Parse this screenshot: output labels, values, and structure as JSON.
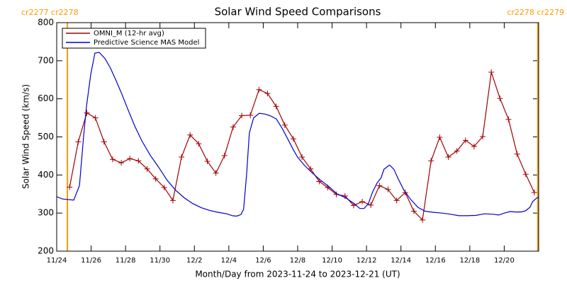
{
  "chart_data": {
    "type": "line",
    "title": "Solar Wind Speed Comparisons",
    "xlabel": "Month/Day from 2023-11-24 to 2023-12-21 (UT)",
    "ylabel": "Solar Wind Speed (km/s)",
    "xlim": [
      0,
      28
    ],
    "ylim": [
      200,
      800
    ],
    "xticks": [
      {
        "value": 0,
        "label": "11/24"
      },
      {
        "value": 2,
        "label": "11/26"
      },
      {
        "value": 4,
        "label": "11/28"
      },
      {
        "value": 6,
        "label": "11/30"
      },
      {
        "value": 8,
        "label": "12/2"
      },
      {
        "value": 10,
        "label": "12/4"
      },
      {
        "value": 12,
        "label": "12/6"
      },
      {
        "value": 14,
        "label": "12/8"
      },
      {
        "value": 16,
        "label": "12/10"
      },
      {
        "value": 18,
        "label": "12/12"
      },
      {
        "value": 20,
        "label": "12/14"
      },
      {
        "value": 22,
        "label": "12/16"
      },
      {
        "value": 24,
        "label": "12/18"
      },
      {
        "value": 26,
        "label": "12/20"
      }
    ],
    "yticks": [
      200,
      300,
      400,
      500,
      600,
      700,
      800
    ],
    "legend": "upper left",
    "vlines": {
      "color": "#ff9900",
      "x": [
        0.62,
        27.95
      ]
    },
    "annotations": [
      "cr2277 cr2278",
      "cr2278 cr2279"
    ],
    "series": [
      {
        "name": "OMNI_M (12-hr avg)",
        "color": "#a00000",
        "marker": "+",
        "x": [
          0.75,
          1.25,
          1.75,
          2.25,
          2.75,
          3.25,
          3.75,
          4.25,
          4.75,
          5.25,
          5.75,
          6.25,
          6.75,
          7.25,
          7.75,
          8.25,
          8.75,
          9.25,
          9.75,
          10.25,
          10.75,
          11.25,
          11.75,
          12.25,
          12.75,
          13.25,
          13.75,
          14.25,
          14.75,
          15.25,
          15.75,
          16.25,
          16.75,
          17.25,
          17.75,
          18.25,
          18.75,
          19.25,
          19.75,
          20.25,
          20.75,
          21.25,
          21.75,
          22.25,
          22.75,
          23.25,
          23.75,
          24.25,
          24.75,
          25.25,
          25.75,
          26.25,
          26.75,
          27.25,
          27.75
        ],
        "values": [
          368,
          487,
          563,
          550,
          487,
          441,
          432,
          443,
          437,
          416,
          390,
          367,
          333,
          447,
          505,
          482,
          436,
          405,
          451,
          526,
          556,
          557,
          624,
          614,
          580,
          531,
          495,
          447,
          416,
          383,
          367,
          349,
          345,
          320,
          330,
          321,
          372,
          362,
          333,
          354,
          305,
          282,
          437,
          499,
          447,
          463,
          491,
          475,
          501,
          670,
          601,
          546,
          455,
          402,
          354
        ]
      },
      {
        "name": "Predictive Science MAS Model",
        "color": "#0000cc",
        "x": [
          0,
          0.33,
          0.99,
          1.32,
          1.56,
          1.73,
          1.98,
          2.22,
          2.47,
          2.8,
          3.13,
          3.46,
          3.79,
          4.12,
          4.53,
          4.94,
          5.43,
          5.93,
          6.42,
          6.91,
          7.41,
          7.9,
          8.4,
          8.89,
          9.38,
          9.88,
          10.21,
          10.45,
          10.7,
          10.86,
          11.03,
          11.19,
          11.44,
          11.77,
          12.1,
          12.43,
          12.76,
          13.09,
          13.42,
          13.74,
          13.99,
          14.4,
          14.81,
          15.31,
          15.8,
          16.3,
          16.79,
          17.28,
          17.61,
          17.86,
          18.11,
          18.35,
          18.6,
          18.85,
          19.01,
          19.34,
          19.59,
          19.84,
          20.16,
          20.58,
          20.99,
          21.4,
          21.89,
          22.39,
          22.88,
          23.37,
          23.87,
          24.36,
          24.86,
          25.35,
          25.68,
          26.01,
          26.34,
          26.67,
          27,
          27.24,
          27.49,
          27.65,
          27.9,
          28
        ],
        "values": [
          343,
          337,
          334,
          372,
          500,
          580,
          665,
          720,
          722,
          706,
          680,
          647,
          612,
          574,
          529,
          490,
          452,
          420,
          386,
          360,
          340,
          325,
          314,
          307,
          302,
          298,
          293,
          292,
          296,
          310,
          400,
          510,
          550,
          562,
          560,
          555,
          547,
          523,
          495,
          467,
          447,
          425,
          407,
          387,
          370,
          350,
          340,
          325,
          312,
          312,
          325,
          355,
          378,
          393,
          415,
          426,
          415,
          390,
          361,
          335,
          315,
          305,
          302,
          300,
          297,
          293,
          293,
          294,
          298,
          297,
          295,
          300,
          304,
          303,
          303,
          306,
          315,
          330,
          340,
          342
        ]
      }
    ]
  }
}
